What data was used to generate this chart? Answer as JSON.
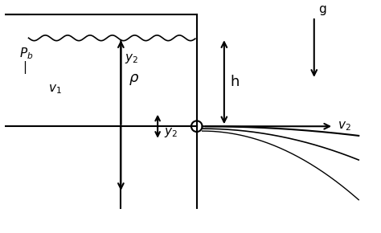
{
  "bg_color": "#ffffff",
  "line_color": "#000000",
  "fig_width": 4.74,
  "fig_height": 2.9,
  "dpi": 100
}
